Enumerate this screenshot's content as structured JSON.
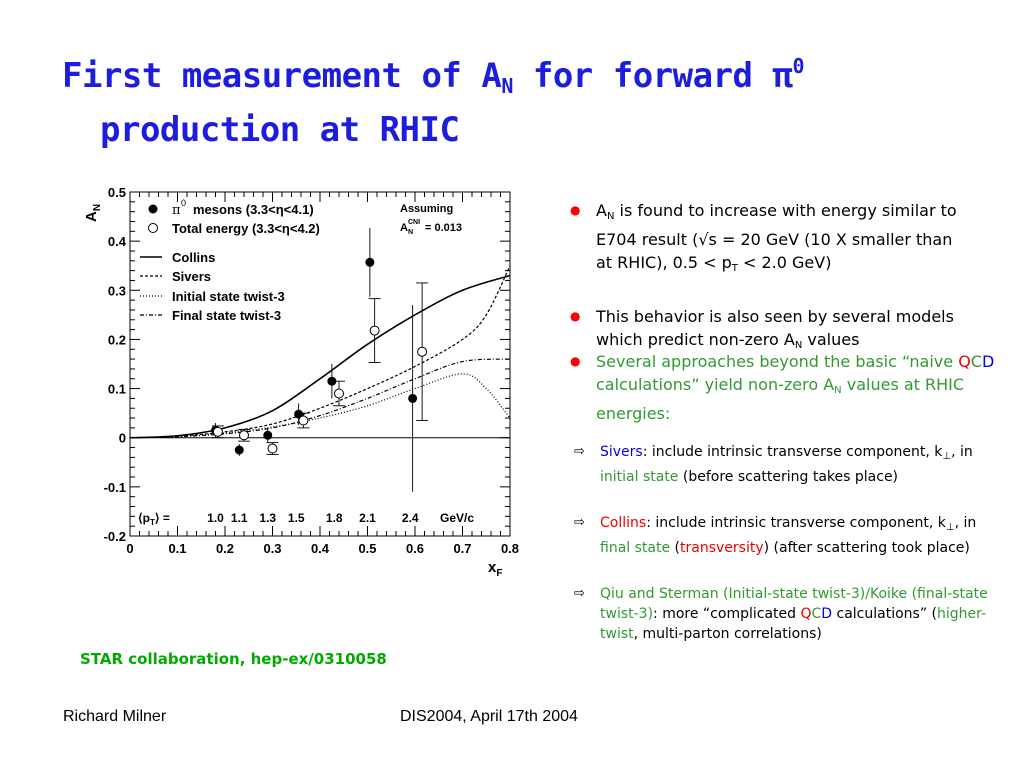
{
  "title": {
    "pre": "First measurement of A",
    "sub": "N",
    "mid": " for forward π",
    "sup": "0",
    "line2": "production at RHIC"
  },
  "bullets": [
    {
      "a": "A",
      "sub": "N",
      "b": " is found to increase with energy similar to E704 result (√s = 20 GeV (10 X smaller than at RHIC), 0.5 < p",
      "sub2": "T",
      "c": " < 2.0 GeV)"
    },
    {
      "a": "This behavior is also seen by several models which predict non-zero A",
      "sub": "N",
      "b": " values"
    },
    {
      "a": "Several approaches beyond the basic “naive ",
      "q": "Q",
      "c": "C",
      "d": "D",
      "e": " calculations” yield non-zero A",
      "sub": "N",
      "f": " values at RHIC energies:"
    }
  ],
  "subbullets": [
    {
      "name": "Sivers",
      "a": ": include intrinsic transverse component, k",
      "sub": "⊥",
      "b": ", in ",
      "hl": "initial state",
      "c": "  (before scattering takes place)"
    },
    {
      "name": "Collins",
      "a": ": include intrinsic transverse component, k",
      "sub": "⊥",
      "b": ", in ",
      "hl": "final state",
      "c": " (",
      "hl2": "transversity",
      "d": ") (after scattering took place)"
    },
    {
      "name": "Qiu and Sterman (Initial-state twist-3)/Koike (final-state twist-3)",
      "a": ": more “complicated ",
      "q": "Q",
      "c": "C",
      "d": "D",
      "e": " calculations” (",
      "hl": "higher-twist",
      "f": ", multi-parton correlations)"
    }
  ],
  "reference": "STAR collaboration, hep-ex/0310058",
  "footer": {
    "left": "Richard Milner",
    "center": "DIS2004, April 17th 2004"
  },
  "chart_data": {
    "type": "scatter",
    "xlabel_main": "x",
    "xlabel_sub": "F",
    "ylabel_main": "A",
    "ylabel_sub": "N",
    "xlim": [
      0,
      0.8
    ],
    "ylim": [
      -0.2,
      0.5
    ],
    "xticks": [
      0,
      0.1,
      0.2,
      0.3,
      0.4,
      0.5,
      0.6,
      0.7,
      0.8
    ],
    "yticks": [
      -0.2,
      -0.1,
      0,
      0.1,
      0.2,
      0.3,
      0.4,
      0.5
    ],
    "xtick_labels": [
      "0",
      "0.1",
      "0.2",
      "0.3",
      "0.4",
      "0.5",
      "0.6",
      "0.7",
      "0.8"
    ],
    "ytick_labels": [
      "-0.2",
      "-0.1",
      "0",
      "0.1",
      "0.2",
      "0.3",
      "0.4",
      "0.5"
    ],
    "legend": {
      "pi0": "mesons (3.3<η<4.1)",
      "pi0_symbol": "π",
      "pi0_sup": "0",
      "total": "Total energy (3.3<η<4.2)",
      "assuming": "Assuming",
      "cni_a": "A",
      "cni_sub": "N",
      "cni_sup": "CNI",
      "cni_val": " = 0.013",
      "curves": [
        "Collins",
        "Sivers",
        "Initial state twist-3",
        "Final state twist-3"
      ]
    },
    "pt_label": "⟨p",
    "pt_label_sub": "T",
    "pt_label_end": "⟩ =",
    "pt_unit": "GeV/c",
    "pt_values": [
      {
        "x": 0.18,
        "label": "1.0"
      },
      {
        "x": 0.23,
        "label": "1.1"
      },
      {
        "x": 0.29,
        "label": "1.3"
      },
      {
        "x": 0.35,
        "label": "1.5"
      },
      {
        "x": 0.43,
        "label": "1.8"
      },
      {
        "x": 0.5,
        "label": "2.1"
      },
      {
        "x": 0.59,
        "label": "2.4"
      }
    ],
    "series": [
      {
        "name": "π0 mesons (3.3<η<4.1)",
        "marker": "filled",
        "points": [
          {
            "x": 0.18,
            "y": 0.015,
            "err": 0.015
          },
          {
            "x": 0.23,
            "y": -0.025,
            "err": 0.012
          },
          {
            "x": 0.29,
            "y": 0.005,
            "err": 0.015
          },
          {
            "x": 0.355,
            "y": 0.048,
            "err": 0.022
          },
          {
            "x": 0.425,
            "y": 0.115,
            "err": 0.035
          },
          {
            "x": 0.505,
            "y": 0.357,
            "err": 0.07
          },
          {
            "x": 0.595,
            "y": 0.08,
            "err": 0.19
          }
        ]
      },
      {
        "name": "Total energy (3.3<η<4.2)",
        "marker": "open",
        "points": [
          {
            "x": 0.185,
            "y": 0.012,
            "err": 0.012
          },
          {
            "x": 0.24,
            "y": 0.005,
            "err": 0.012
          },
          {
            "x": 0.3,
            "y": -0.022,
            "err": 0.012
          },
          {
            "x": 0.365,
            "y": 0.035,
            "err": 0.015
          },
          {
            "x": 0.44,
            "y": 0.09,
            "err": 0.025
          },
          {
            "x": 0.515,
            "y": 0.218,
            "err": 0.065
          },
          {
            "x": 0.615,
            "y": 0.175,
            "err": 0.14
          }
        ]
      }
    ],
    "curves": [
      {
        "name": "Collins",
        "style": "solid",
        "points": [
          [
            0,
            0
          ],
          [
            0.1,
            0.004
          ],
          [
            0.2,
            0.02
          ],
          [
            0.3,
            0.055
          ],
          [
            0.4,
            0.12
          ],
          [
            0.5,
            0.19
          ],
          [
            0.6,
            0.25
          ],
          [
            0.7,
            0.3
          ],
          [
            0.8,
            0.33
          ]
        ]
      },
      {
        "name": "Sivers",
        "style": "dashed",
        "points": [
          [
            0,
            0
          ],
          [
            0.1,
            0.003
          ],
          [
            0.2,
            0.012
          ],
          [
            0.3,
            0.028
          ],
          [
            0.4,
            0.06
          ],
          [
            0.5,
            0.1
          ],
          [
            0.6,
            0.145
          ],
          [
            0.7,
            0.2
          ],
          [
            0.75,
            0.25
          ],
          [
            0.8,
            0.35
          ]
        ]
      },
      {
        "name": "Initial state twist-3",
        "style": "dotted",
        "points": [
          [
            0,
            0
          ],
          [
            0.1,
            0.002
          ],
          [
            0.2,
            0.01
          ],
          [
            0.3,
            0.022
          ],
          [
            0.4,
            0.04
          ],
          [
            0.5,
            0.065
          ],
          [
            0.6,
            0.1
          ],
          [
            0.7,
            0.13
          ],
          [
            0.75,
            0.1
          ],
          [
            0.8,
            0.04
          ]
        ]
      },
      {
        "name": "Final state twist-3",
        "style": "dashdot",
        "points": [
          [
            0,
            0
          ],
          [
            0.1,
            0.002
          ],
          [
            0.2,
            0.008
          ],
          [
            0.3,
            0.02
          ],
          [
            0.4,
            0.045
          ],
          [
            0.5,
            0.08
          ],
          [
            0.6,
            0.12
          ],
          [
            0.7,
            0.155
          ],
          [
            0.8,
            0.16
          ]
        ]
      }
    ]
  }
}
